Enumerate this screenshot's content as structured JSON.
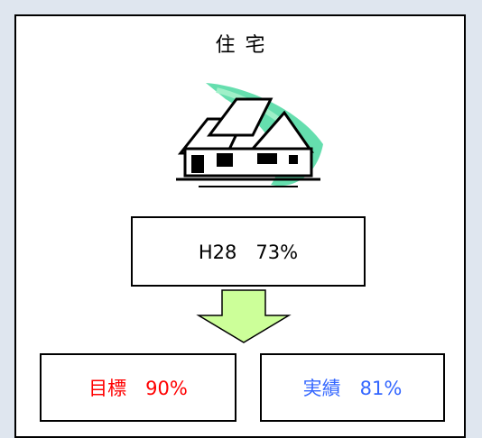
{
  "panel": {
    "title": "住 宅",
    "current": "H28　73%",
    "target": "目標　90%",
    "actual": "実績　81%"
  }
}
